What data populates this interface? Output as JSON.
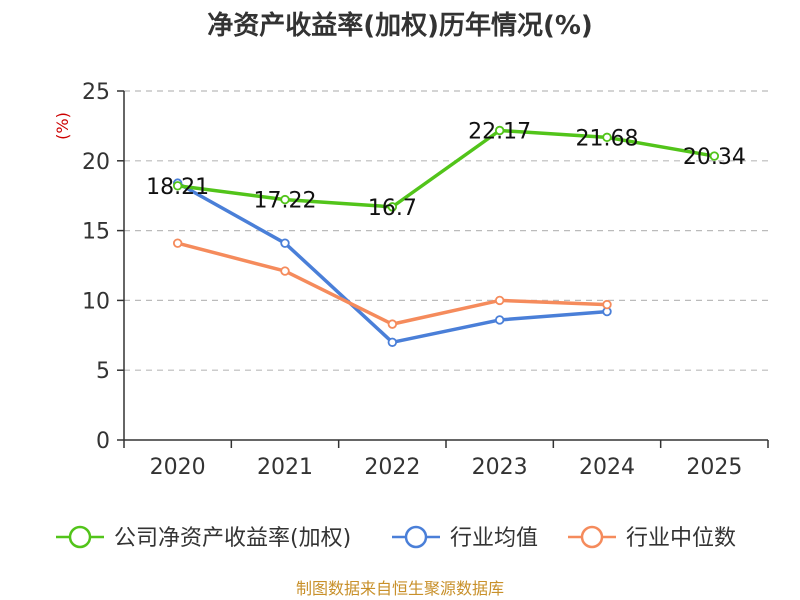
{
  "chart_data": {
    "type": "line",
    "title": "净资产收益率(加权)历年情况(%)",
    "ylabel": "(%)",
    "xlabel": "",
    "ylim": [
      0,
      25
    ],
    "yticks": [
      "0",
      "5",
      "10",
      "15",
      "20",
      "25"
    ],
    "yticks_values": [
      0,
      5,
      10,
      15,
      20,
      25
    ],
    "categories": [
      "2020",
      "2021",
      "2022",
      "2023",
      "2024",
      "2025"
    ],
    "grid": true,
    "legend_position": "bottom",
    "series": [
      {
        "name": "公司净资产收益率(加权)",
        "color": "#52c41a",
        "values": [
          18.21,
          17.22,
          16.7,
          22.17,
          21.68,
          20.34
        ],
        "labels": [
          "18.21",
          "17.22",
          "16.7",
          "22.17",
          "21.68",
          "20.34"
        ]
      },
      {
        "name": "行业均值",
        "color": "#4a7fd8",
        "values": [
          18.4,
          14.1,
          7.0,
          8.6,
          9.2,
          null
        ]
      },
      {
        "name": "行业中位数",
        "color": "#f58b5c",
        "values": [
          14.1,
          12.1,
          8.3,
          10.0,
          9.7,
          null
        ]
      }
    ]
  },
  "ylabel_color": "#cc0000",
  "source_text": "制图数据来自恒生聚源数据库",
  "source_color": "#c8902a"
}
